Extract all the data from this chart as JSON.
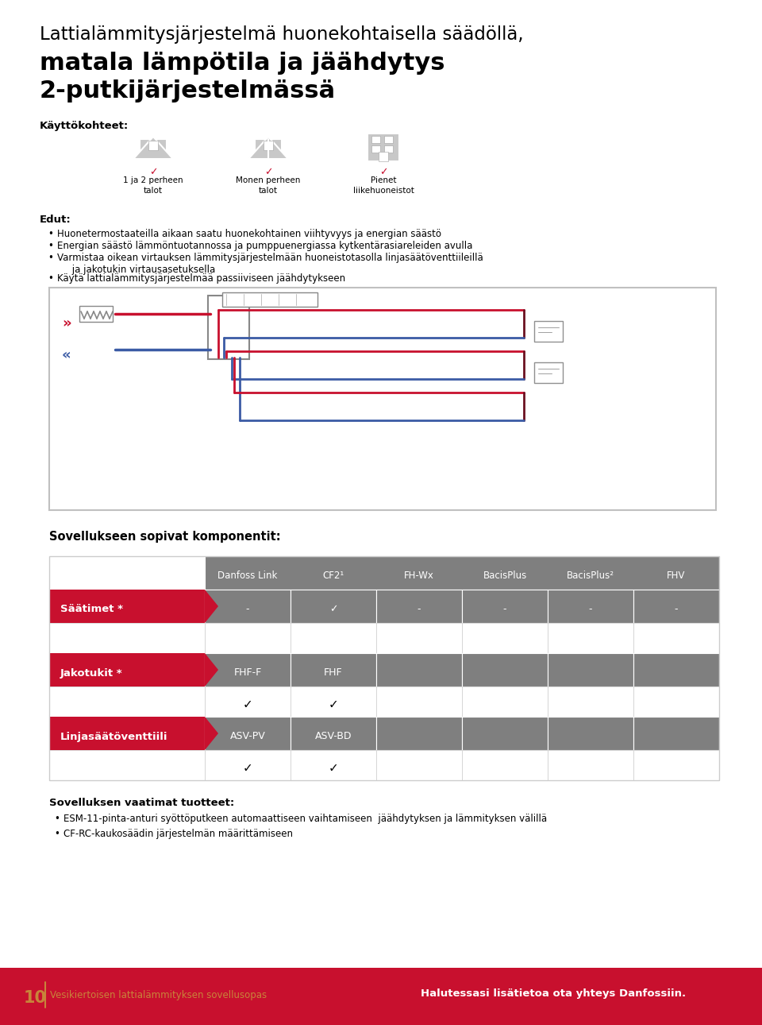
{
  "title_line1": "Lattialämmitysjärjestelmä huonekohtaisella säädöllä,",
  "title_line2": "matala lämpötila ja jäähdytys",
  "title_line3": "2-putkijärjestelmässä",
  "kayttokohteet_label": "Käyttökohteet:",
  "kayttokohteet_items": [
    "1 ja 2 perheen\ntalot",
    "Monen perheen\ntalot",
    "Pienet\nliikehuoneistot"
  ],
  "edut_label": "Edut:",
  "edut_items": [
    "Huonetermostaateilla aikaan saatu huonekohtainen viihtyvyys ja energian säästö",
    "Energian säästö lämmöntuotannossa ja pumppuenergiassa kytkentärasiareleiden avulla",
    "Varmistaa oikean virtauksen lämmitysjärjestelmään huoneistotasolla linjasäätöventtiileillä\n     ja jakotukin virtausasetuksella",
    "Käytä lattialämmitysjärjestelmää passiiviseen jäähdytykseen"
  ],
  "sovellukseen_label": "Sovellukseen sopivat komponentit:",
  "table_col_headers": [
    "Danfoss Link",
    "CF2¹",
    "FH-Wx",
    "BacisPlus",
    "BacisPlus²",
    "FHV"
  ],
  "table_rows": [
    {
      "label": "Säätimet *",
      "is_hdr": true,
      "data": [
        "-",
        "✓",
        "-",
        "-",
        "-",
        "-"
      ]
    },
    {
      "label": null,
      "is_hdr": false,
      "data": [
        "",
        "",
        "",
        "",
        "",
        ""
      ]
    },
    {
      "label": "Jakotukit *",
      "is_hdr": true,
      "data": [
        "FHF-F",
        "FHF",
        "",
        "",
        "",
        ""
      ]
    },
    {
      "label": null,
      "is_hdr": false,
      "data": [
        "✓",
        "✓",
        "",
        "",
        "",
        ""
      ]
    },
    {
      "label": "Linjasäätöventtiili",
      "is_hdr": true,
      "data": [
        "ASV-PV",
        "ASV-BD",
        "",
        "",
        "",
        ""
      ]
    },
    {
      "label": null,
      "is_hdr": false,
      "data": [
        "✓",
        "✓",
        "",
        "",
        "",
        ""
      ]
    }
  ],
  "vaatimat_label": "Sovelluksen vaatimat tuotteet:",
  "vaatimat_items": [
    "ESM-11-pinta-anturi syöttöputkeen automaattiseen vaihtamiseen  jäähdytyksen ja lämmityksen välillä",
    "CF-RC-kaukosäädin järjestelmän määrittämiseen"
  ],
  "footer_num": "10",
  "footer_text": "Vesikiertoisen lattialämmityksen sovellusopas",
  "footer_right": "Halutessasi lisätietoa ota yhteys Danfossiin.",
  "red": "#C8102E",
  "gray": "#7F7F7F",
  "lgray": "#C8C8C8",
  "white": "#FFFFFF",
  "orange": "#C8843A",
  "blue": "#3B5BA5",
  "dark_maroon": "#6B1020"
}
